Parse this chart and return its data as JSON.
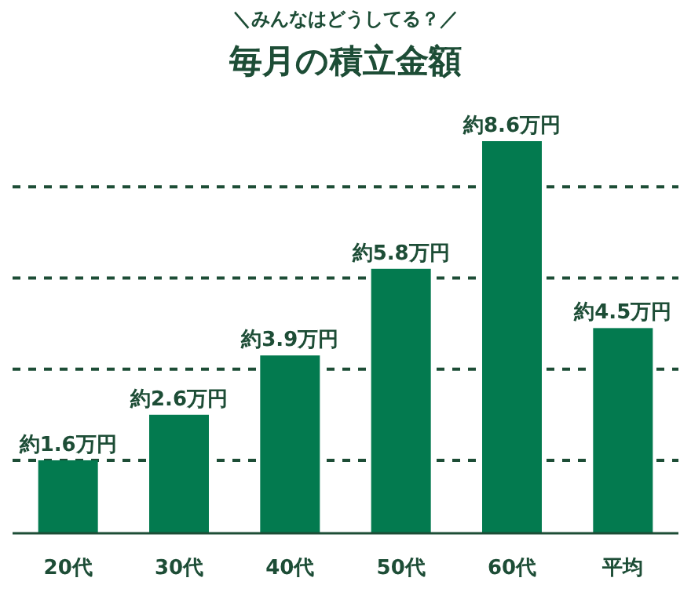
{
  "chart_data": {
    "type": "bar",
    "subtitle": "＼みんなはどうしてる？／",
    "title": "毎月の積立金額",
    "categories": [
      "20代",
      "30代",
      "40代",
      "50代",
      "60代",
      "平均"
    ],
    "values": [
      1.6,
      2.6,
      3.9,
      5.8,
      8.6,
      4.5
    ],
    "value_labels": [
      "約1.6万円",
      "約2.6万円",
      "約3.9万円",
      "約5.8万円",
      "約8.6万円",
      "約4.5万円"
    ],
    "color": "#037a4f",
    "ref_lines": [
      {
        "axis": "y",
        "value": 1.6,
        "line_style": "dashed"
      },
      {
        "axis": "y",
        "value": 3.6,
        "line_style": "dashed"
      },
      {
        "axis": "y",
        "value": 5.6,
        "line_style": "dashed"
      },
      {
        "axis": "y",
        "value": 7.6,
        "line_style": "dashed"
      }
    ],
    "tick_labels": "x"
  }
}
